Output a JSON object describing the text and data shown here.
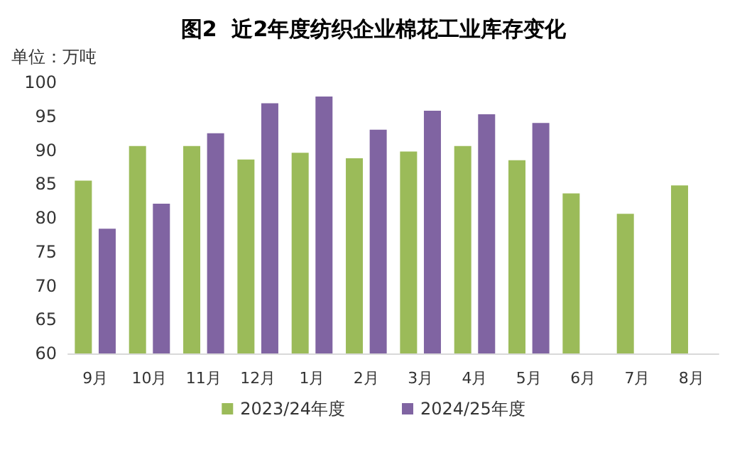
{
  "chart_data": {
    "type": "bar",
    "title": "图2  近2年度纺织企业棉花工业库存变化",
    "ylabel": "单位：万吨",
    "categories": [
      "9月",
      "10月",
      "11月",
      "12月",
      "1月",
      "2月",
      "3月",
      "4月",
      "5月",
      "6月",
      "7月",
      "8月"
    ],
    "series": [
      {
        "name": "2023/24年度",
        "color": "#9bbb59",
        "values": [
          85.5,
          90.6,
          90.6,
          88.6,
          89.6,
          88.8,
          89.8,
          90.6,
          88.5,
          83.6,
          80.6,
          84.8
        ]
      },
      {
        "name": "2024/25年度",
        "color": "#8064a2",
        "values": [
          78.4,
          82.1,
          92.5,
          96.9,
          97.9,
          93.0,
          95.8,
          95.3,
          94.0,
          null,
          null,
          null
        ]
      }
    ],
    "ylim": [
      60,
      100
    ],
    "yticks": [
      60,
      65,
      70,
      75,
      80,
      85,
      90,
      95,
      100
    ],
    "grid": false,
    "legend": "bottom"
  }
}
